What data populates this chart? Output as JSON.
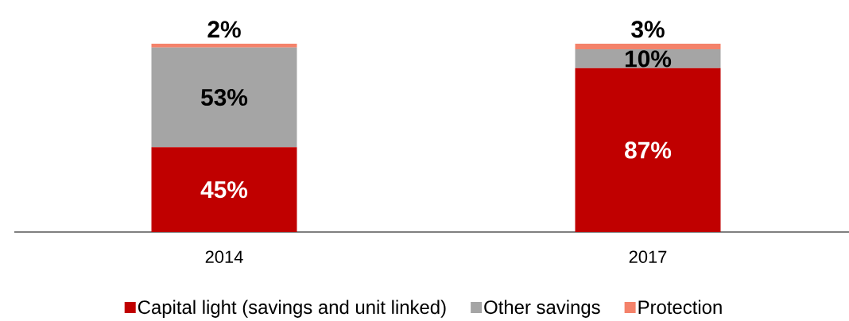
{
  "chart_data": {
    "type": "bar",
    "stacked": true,
    "categories": [
      "2014",
      "2017"
    ],
    "legend": "bottom",
    "series": [
      {
        "name": "Capital light (savings and unit linked)",
        "color": "#c00000",
        "values": [
          45,
          87
        ],
        "value_labels": [
          "45%",
          "87%"
        ]
      },
      {
        "name": "Other savings",
        "color": "#a5a5a5",
        "values": [
          53,
          10
        ],
        "value_labels": [
          "53%",
          "10%"
        ]
      },
      {
        "name": "Protection",
        "color": "#f4826a",
        "values": [
          2,
          3
        ],
        "value_labels": [
          "2%",
          "3%"
        ]
      }
    ]
  }
}
